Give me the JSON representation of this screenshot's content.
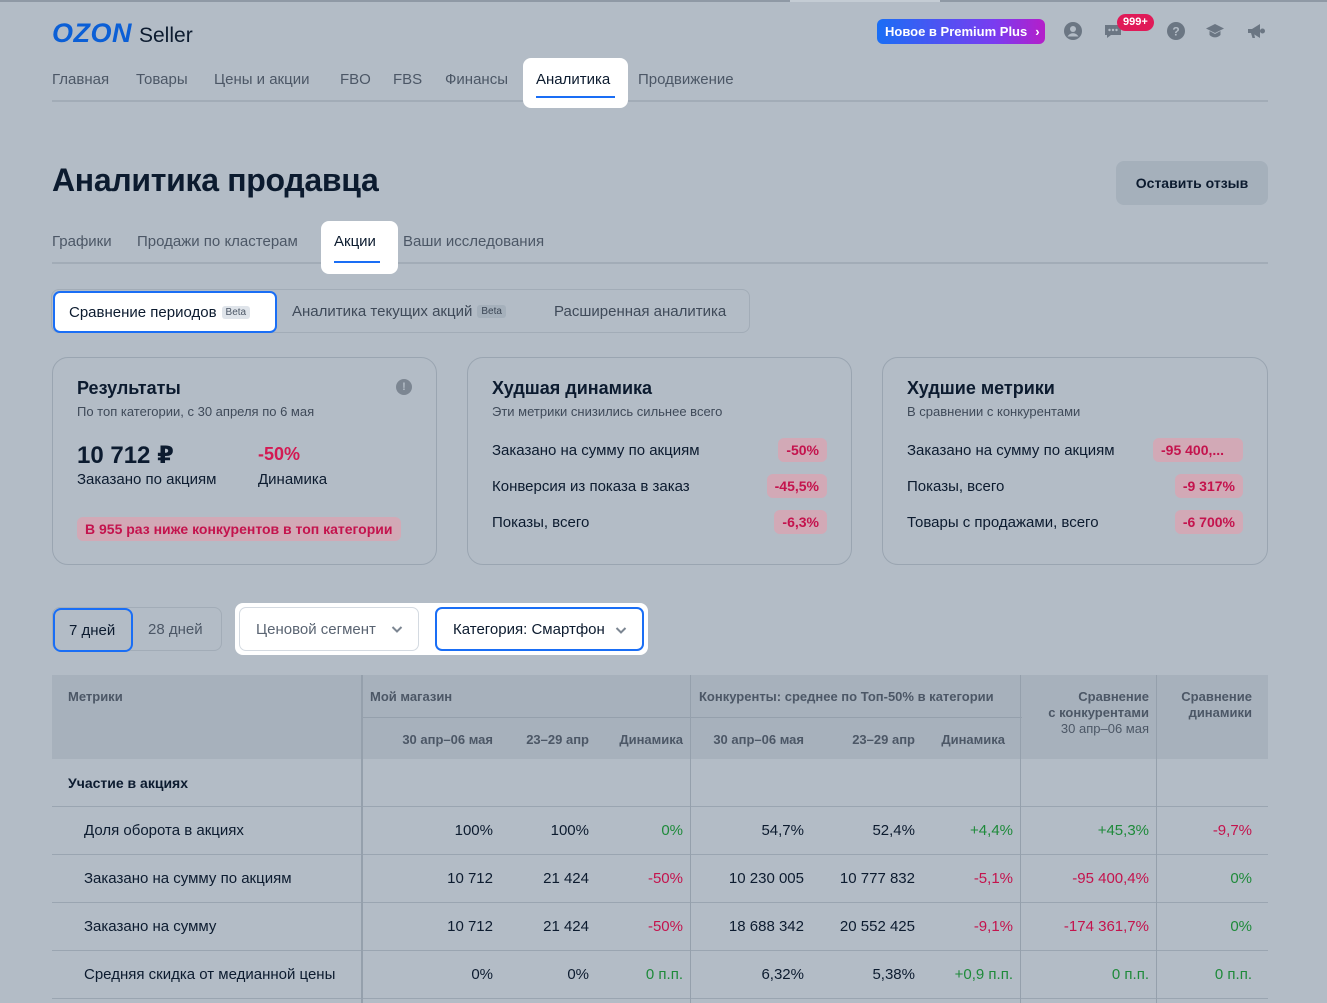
{
  "header": {
    "logo_brand": "OZON",
    "logo_product": "Seller",
    "premium_label": "Новое в Premium Plus",
    "notifications_badge": "999+",
    "colors": {
      "accent": "#1a6ef5",
      "negative": "#c4134d",
      "positive": "#1e8a3a"
    }
  },
  "main_nav": [
    "Главная",
    "Товары",
    "Цены и акции",
    "FBO",
    "FBS",
    "Финансы",
    "Аналитика",
    "Продвижение"
  ],
  "main_nav_active": "Аналитика",
  "page": {
    "title": "Аналитика продавца",
    "feedback_button": "Оставить отзыв"
  },
  "sub_nav": [
    "Графики",
    "Продажи по кластерам",
    "Акции",
    "Ваши исследования"
  ],
  "sub_nav_active": "Акции",
  "segments": {
    "compare": "Сравнение периодов",
    "current": "Аналитика текущих акций",
    "advanced": "Расширенная аналитика",
    "beta": "Beta"
  },
  "cards": {
    "results": {
      "title": "Результаты",
      "subtitle": "По топ категории, с 30 апреля по 6 мая",
      "value": "10 712 ₽",
      "value_label": "Заказано по акциям",
      "dynamics": "-50%",
      "dynamics_label": "Динамика",
      "warning": "В 955 раз ниже конкурентов в топ категории",
      "info": "!"
    },
    "worst_dynamics": {
      "title": "Худшая динамика",
      "subtitle": "Эти метрики снизились сильнее всего",
      "rows": [
        {
          "label": "Заказано на сумму по акциям",
          "value": "-50%"
        },
        {
          "label": "Конверсия из показа в заказ",
          "value": "-45,5%"
        },
        {
          "label": "Показы, всего",
          "value": "-6,3%"
        }
      ]
    },
    "worst_metrics": {
      "title": "Худшие метрики",
      "subtitle": "В сравнении с конкурентами",
      "rows": [
        {
          "label": "Заказано на сумму по акциям",
          "value": "-95 400,..."
        },
        {
          "label": "Показы, всего",
          "value": "-9 317%"
        },
        {
          "label": "Товары с продажами, всего",
          "value": "-6 700%"
        }
      ]
    }
  },
  "filters": {
    "period_7": "7 дней",
    "period_28": "28 дней",
    "price_segment": "Ценовой сегмент",
    "category": "Категория: Смартфон"
  },
  "table": {
    "h_metrics": "Метрики",
    "h_my_store": "Мой магазин",
    "h_competitors": "Конкуренты: среднее по Топ-50% в категории",
    "h_compare_comp_1": "Сравнение",
    "h_compare_comp_2": "с конкурентами",
    "h_compare_comp_3": "30 апр–06 мая",
    "h_compare_dyn_1": "Сравнение",
    "h_compare_dyn_2": "динамики",
    "h_period_1": "30 апр–06 мая",
    "h_period_2": "23–29 апр",
    "h_dynamics": "Динамика",
    "section": "Участие в акциях",
    "rows": [
      {
        "name": "Доля оборота в акциях",
        "my1": "100%",
        "my2": "100%",
        "mydyn": "0%",
        "c1": "54,7%",
        "c2": "52,4%",
        "cdyn": "+4,4%",
        "cmp": "+45,3%",
        "cmpdyn": "-9,7%"
      },
      {
        "name": "Заказано на сумму по акциям",
        "my1": "10 712",
        "my2": "21 424",
        "mydyn": "-50%",
        "c1": "10 230 005",
        "c2": "10 777 832",
        "cdyn": "-5,1%",
        "cmp": "-95 400,4%",
        "cmpdyn": "0%"
      },
      {
        "name": "Заказано на сумму",
        "my1": "10 712",
        "my2": "21 424",
        "mydyn": "-50%",
        "c1": "18 688 342",
        "c2": "20 552 425",
        "cdyn": "-9,1%",
        "cmp": "-174 361,7%",
        "cmpdyn": "0%"
      },
      {
        "name": "Средняя скидка от медианной цены",
        "my1": "0%",
        "my2": "0%",
        "mydyn": "0 п.п.",
        "c1": "6,32%",
        "c2": "5,38%",
        "cdyn": "+0,9 п.п.",
        "cmp": "0 п.п.",
        "cmpdyn": "0 п.п."
      }
    ]
  }
}
